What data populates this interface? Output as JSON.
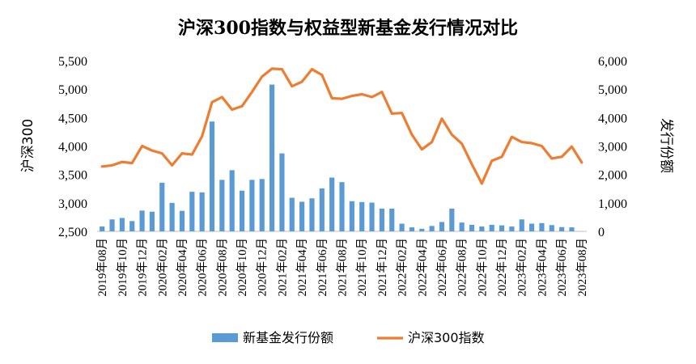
{
  "chart_data": {
    "type": "bar+line",
    "title": "沪深300指数与权益型新基金发行情况对比",
    "ylabel_left": "沪深300",
    "ylabel_right": "发行份额",
    "ylim_left": [
      2500,
      5500
    ],
    "ylim_right": [
      0,
      6000
    ],
    "yticks_left": [
      "2,500",
      "3,000",
      "3,500",
      "4,000",
      "4,500",
      "5,000",
      "5,500"
    ],
    "yticks_right": [
      "0",
      "1,000",
      "2,000",
      "3,000",
      "4,000",
      "5,000",
      "6,000"
    ],
    "categories": [
      "2019年08月",
      "2019年09月",
      "2019年10月",
      "2019年11月",
      "2019年12月",
      "2020年01月",
      "2020年02月",
      "2020年03月",
      "2020年04月",
      "2020年05月",
      "2020年06月",
      "2020年07月",
      "2020年08月",
      "2020年09月",
      "2020年10月",
      "2020年11月",
      "2020年12月",
      "2021年01月",
      "2021年02月",
      "2021年03月",
      "2021年04月",
      "2021年05月",
      "2021年06月",
      "2021年07月",
      "2021年08月",
      "2021年09月",
      "2021年10月",
      "2021年11月",
      "2021年12月",
      "2022年01月",
      "2022年02月",
      "2022年03月",
      "2022年04月",
      "2022年05月",
      "2022年06月",
      "2022年07月",
      "2022年08月",
      "2022年09月",
      "2022年10月",
      "2022年11月",
      "2022年12月",
      "2023年01月",
      "2023年02月",
      "2023年03月",
      "2023年04月",
      "2023年05月",
      "2023年06月",
      "2023年07月",
      "2023年08月"
    ],
    "x_tick_labels": [
      "2019年08月",
      "2019年10月",
      "2019年12月",
      "2020年02月",
      "2020年04月",
      "2020年06月",
      "2020年08月",
      "2020年10月",
      "2020年12月",
      "2021年02月",
      "2021年04月",
      "2021年06月",
      "2021年08月",
      "2021年10月",
      "2021年12月",
      "2022年02月",
      "2022年04月",
      "2022年06月",
      "2022年08月",
      "2022年10月",
      "2022年12月",
      "2023年02月",
      "2023年04月",
      "2023年06月",
      "2023年08月"
    ],
    "series": [
      {
        "name": "新基金发行份额",
        "type": "bar",
        "axis": "right",
        "color": "#5B9BD5",
        "values": [
          170,
          420,
          470,
          360,
          730,
          690,
          1710,
          1000,
          720,
          1390,
          1370,
          3860,
          1810,
          2150,
          1430,
          1810,
          1840,
          5160,
          2740,
          1180,
          1040,
          1160,
          1510,
          1890,
          1730,
          1060,
          1030,
          1010,
          800,
          800,
          270,
          140,
          90,
          190,
          330,
          800,
          310,
          230,
          170,
          230,
          210,
          170,
          420,
          270,
          290,
          220,
          150,
          140,
          0
        ],
        "_comment_type": "bar"
      },
      {
        "name": "沪深300指数",
        "type": "line",
        "axis": "left",
        "color": "#ED7D31",
        "values": [
          3640,
          3660,
          3720,
          3700,
          4000,
          3920,
          3870,
          3660,
          3870,
          3850,
          4170,
          4770,
          4860,
          4640,
          4700,
          4950,
          5220,
          5360,
          5350,
          5050,
          5130,
          5350,
          5250,
          4840,
          4830,
          4880,
          4910,
          4860,
          4950,
          4570,
          4580,
          4200,
          3940,
          4070,
          4480,
          4200,
          4040,
          3680,
          3340,
          3740,
          3810,
          4160,
          4070,
          4050,
          4000,
          3780,
          3810,
          3990,
          3710
        ]
      }
    ],
    "legend_position": "bottom",
    "grid": false
  }
}
